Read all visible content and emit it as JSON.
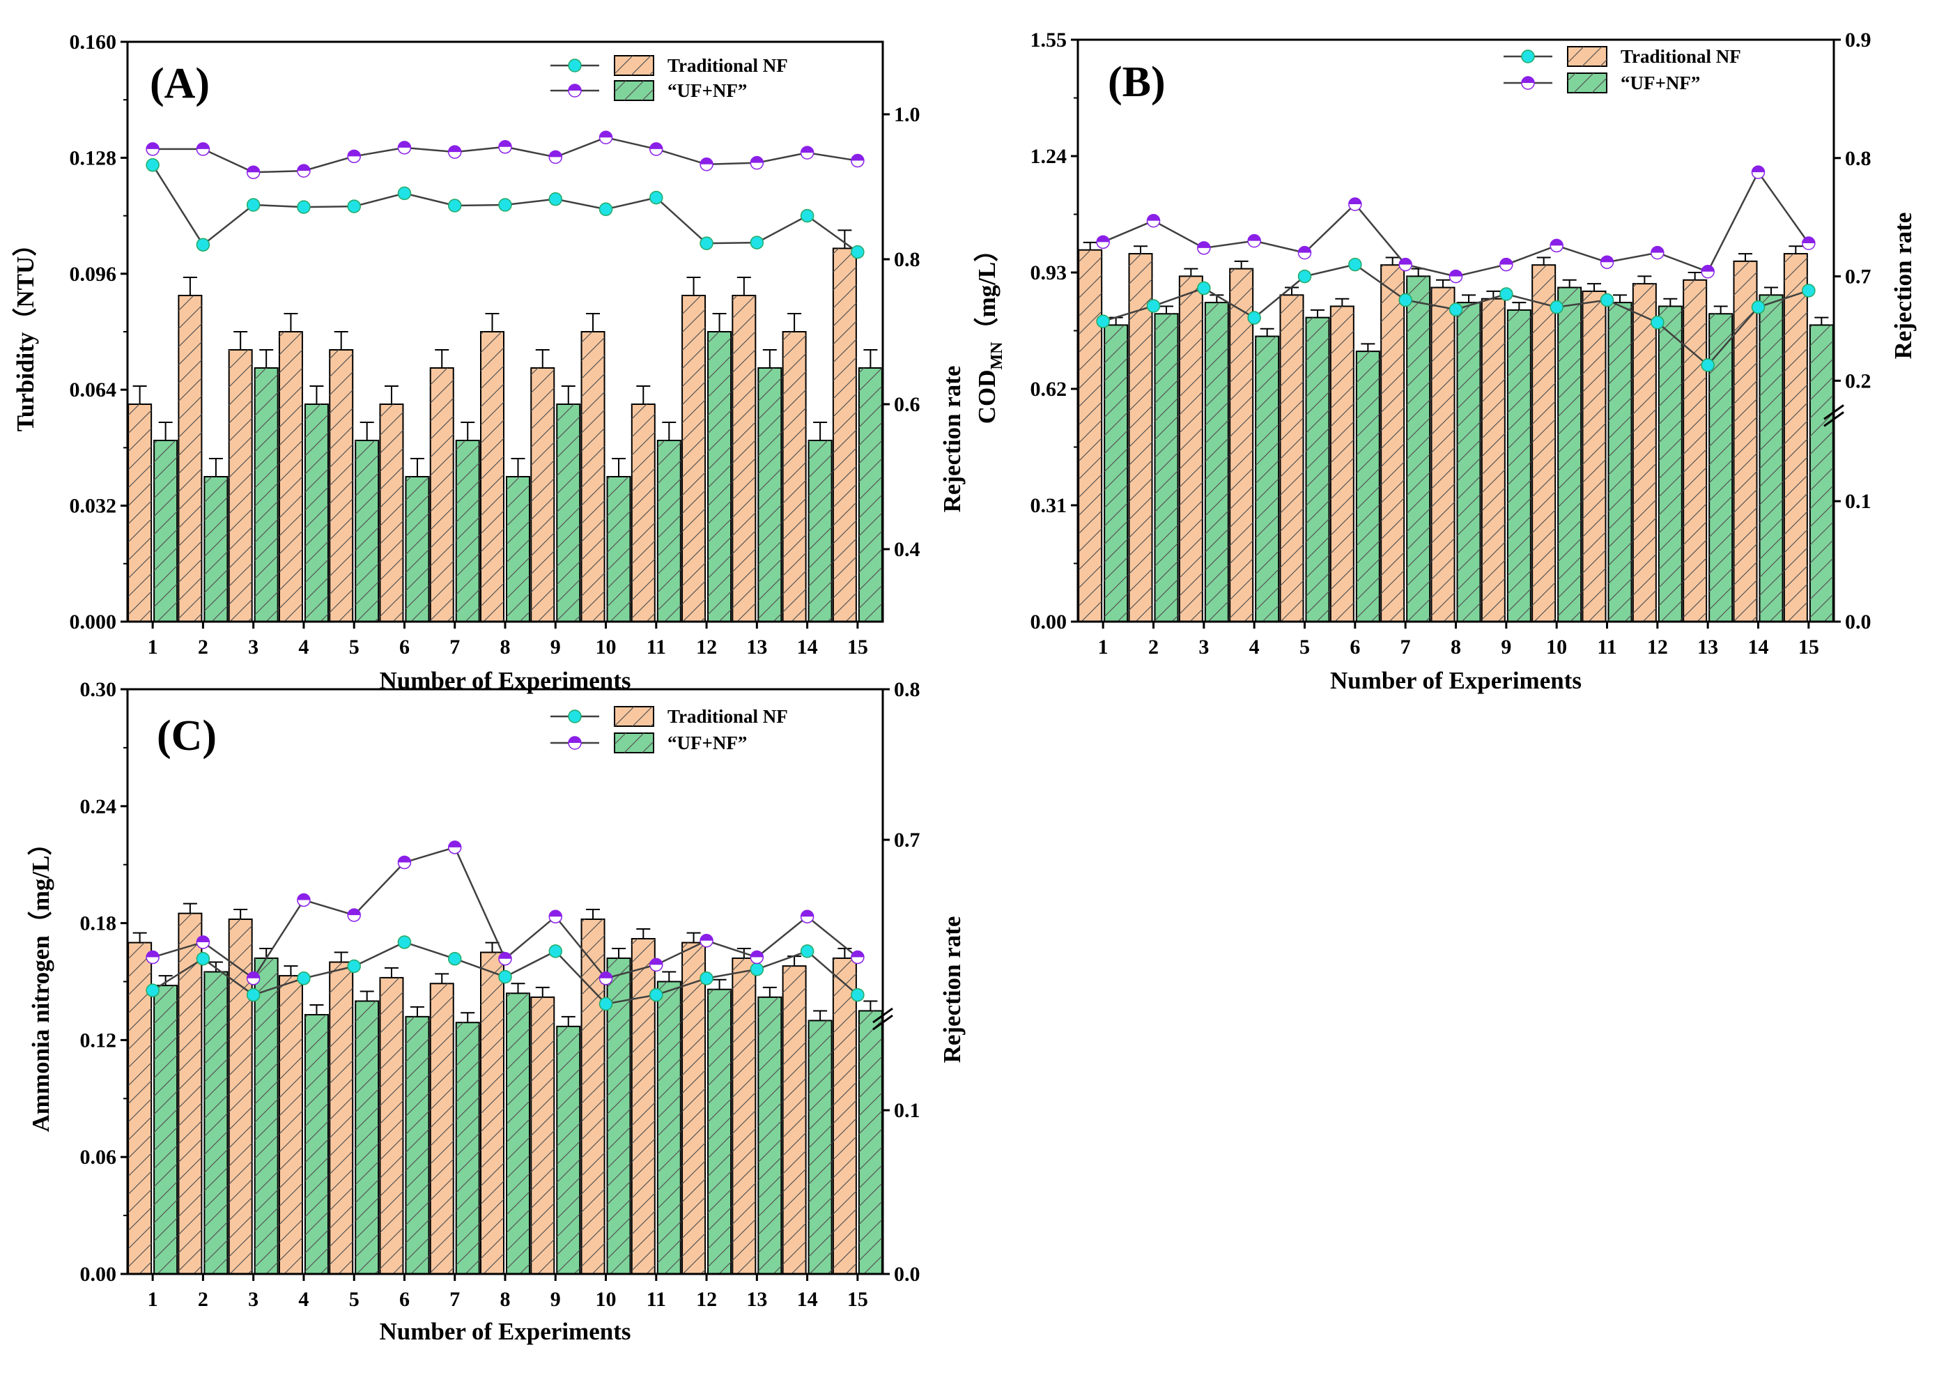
{
  "colors": {
    "traditional_bar": "#f9c79f",
    "ufnf_bar": "#7fd49b",
    "traditional_marker": "#1fe2e6",
    "ufnf_marker": "#8a1fe8",
    "line": "#404040"
  },
  "chart_data": [
    {
      "type": "bar",
      "panel_label": "(A)",
      "xlabel": "Number of Experiments",
      "ylabel": "Turbidity（NTU）",
      "ylabel_right": "Rejection rate",
      "categories": [
        "1",
        "2",
        "3",
        "4",
        "5",
        "6",
        "7",
        "8",
        "9",
        "10",
        "11",
        "12",
        "13",
        "14",
        "15"
      ],
      "ylim": [
        0,
        0.16
      ],
      "yticks": [
        "0.000",
        "0.032",
        "0.064",
        "0.096",
        "0.128",
        "0.160"
      ],
      "ylim_right": [
        0.3,
        1.1
      ],
      "yticks_right": [
        "0.4",
        "0.6",
        "0.8",
        "1.0"
      ],
      "legend": [
        "Traditional NF",
        "“UF+NF”"
      ],
      "series": [
        {
          "name": "Traditional NF",
          "kind": "bar",
          "values": [
            0.06,
            0.09,
            0.075,
            0.08,
            0.075,
            0.06,
            0.07,
            0.08,
            0.07,
            0.08,
            0.06,
            0.09,
            0.09,
            0.08,
            0.103
          ],
          "errors": [
            0.005,
            0.005,
            0.005,
            0.005,
            0.005,
            0.005,
            0.005,
            0.005,
            0.005,
            0.005,
            0.005,
            0.005,
            0.005,
            0.005,
            0.005
          ]
        },
        {
          "name": "“UF+NF”",
          "kind": "bar",
          "values": [
            0.05,
            0.04,
            0.07,
            0.06,
            0.05,
            0.04,
            0.05,
            0.04,
            0.06,
            0.04,
            0.05,
            0.08,
            0.07,
            0.05,
            0.07
          ],
          "errors": [
            0.005,
            0.005,
            0.005,
            0.005,
            0.005,
            0.005,
            0.005,
            0.005,
            0.005,
            0.005,
            0.005,
            0.005,
            0.005,
            0.005,
            0.005
          ]
        },
        {
          "name": "Traditional NF",
          "kind": "line",
          "values": [
            0.93,
            0.82,
            0.875,
            0.872,
            0.873,
            0.891,
            0.874,
            0.875,
            0.883,
            0.869,
            0.885,
            0.822,
            0.823,
            0.86,
            0.81
          ]
        },
        {
          "name": "“UF+NF”",
          "kind": "line",
          "values": [
            0.952,
            0.952,
            0.92,
            0.922,
            0.942,
            0.954,
            0.948,
            0.955,
            0.941,
            0.968,
            0.952,
            0.931,
            0.933,
            0.947,
            0.936
          ]
        }
      ]
    },
    {
      "type": "bar",
      "panel_label": "(B)",
      "xlabel": "Number of Experiments",
      "ylabel": "COD",
      "ylabel_sub": "MN",
      "ylabel_tail": "（mg/L）",
      "ylabel_right": "Rejection rate",
      "categories": [
        "1",
        "2",
        "3",
        "4",
        "5",
        "6",
        "7",
        "8",
        "9",
        "10",
        "11",
        "12",
        "13",
        "14",
        "15"
      ],
      "ylim": [
        0,
        1.55
      ],
      "yticks": [
        "0.00",
        "0.31",
        "0.62",
        "0.93",
        "1.24",
        "1.55"
      ],
      "ylim_right": [
        0,
        0.9
      ],
      "yticks_right": [
        "0.0",
        "0.1",
        "0.2",
        "0.7",
        "0.8",
        "0.9"
      ],
      "legend": [
        "Traditional NF",
        "“UF+NF”"
      ],
      "series": [
        {
          "name": "Traditional NF",
          "kind": "bar",
          "values": [
            0.99,
            0.98,
            0.92,
            0.94,
            0.87,
            0.84,
            0.95,
            0.89,
            0.86,
            0.95,
            0.88,
            0.9,
            0.91,
            0.96,
            0.98
          ],
          "errors": [
            0.02,
            0.02,
            0.02,
            0.02,
            0.02,
            0.02,
            0.02,
            0.02,
            0.02,
            0.02,
            0.02,
            0.02,
            0.02,
            0.02,
            0.02
          ]
        },
        {
          "name": "“UF+NF”",
          "kind": "bar",
          "values": [
            0.79,
            0.82,
            0.85,
            0.76,
            0.81,
            0.72,
            0.92,
            0.85,
            0.83,
            0.89,
            0.85,
            0.84,
            0.82,
            0.87,
            0.79
          ],
          "errors": [
            0.02,
            0.02,
            0.02,
            0.02,
            0.02,
            0.02,
            0.02,
            0.02,
            0.02,
            0.02,
            0.02,
            0.02,
            0.02,
            0.02,
            0.02
          ]
        },
        {
          "name": "Traditional NF",
          "kind": "line",
          "values": [
            0.662,
            0.675,
            0.69,
            0.665,
            0.7,
            0.71,
            0.68,
            0.672,
            0.685,
            0.674,
            0.68,
            0.661,
            0.625,
            0.674,
            0.688
          ]
        },
        {
          "name": "“UF+NF”",
          "kind": "line",
          "values": [
            0.729,
            0.747,
            0.724,
            0.73,
            0.72,
            0.761,
            0.71,
            0.7,
            0.71,
            0.726,
            0.712,
            0.72,
            0.704,
            0.788,
            0.728
          ]
        }
      ]
    },
    {
      "type": "bar",
      "panel_label": "(C)",
      "xlabel": "Number of Experiments",
      "ylabel": "Ammonia nitrogen（mg/L）",
      "ylabel_right": "Rejection rate",
      "categories": [
        "1",
        "2",
        "3",
        "4",
        "5",
        "6",
        "7",
        "8",
        "9",
        "10",
        "11",
        "12",
        "13",
        "14",
        "15"
      ],
      "ylim": [
        0,
        0.3
      ],
      "yticks": [
        "0.00",
        "0.06",
        "0.12",
        "0.18",
        "0.24",
        "0.30"
      ],
      "ylim_right": [
        0,
        0.8
      ],
      "yticks_right": [
        "0.0",
        "0.1",
        "0.7",
        "0.8"
      ],
      "legend": [
        "Traditional NF",
        "“UF+NF”"
      ],
      "series": [
        {
          "name": "Traditional NF",
          "kind": "bar",
          "values": [
            0.17,
            0.185,
            0.182,
            0.153,
            0.16,
            0.152,
            0.149,
            0.165,
            0.142,
            0.182,
            0.172,
            0.17,
            0.162,
            0.158,
            0.162
          ],
          "errors": [
            0.005,
            0.005,
            0.005,
            0.005,
            0.005,
            0.005,
            0.005,
            0.005,
            0.005,
            0.005,
            0.005,
            0.005,
            0.005,
            0.005,
            0.005
          ]
        },
        {
          "name": "“UF+NF”",
          "kind": "bar",
          "values": [
            0.148,
            0.155,
            0.162,
            0.133,
            0.14,
            0.132,
            0.129,
            0.144,
            0.127,
            0.162,
            0.15,
            0.146,
            0.142,
            0.13,
            0.135
          ],
          "errors": [
            0.005,
            0.005,
            0.005,
            0.005,
            0.005,
            0.005,
            0.005,
            0.005,
            0.005,
            0.005,
            0.005,
            0.005,
            0.005,
            0.005,
            0.005
          ]
        },
        {
          "name": "Traditional NF",
          "kind": "line",
          "values": [
            0.6,
            0.621,
            0.597,
            0.608,
            0.616,
            0.632,
            0.621,
            0.609,
            0.626,
            0.591,
            0.597,
            0.608,
            0.614,
            0.626,
            0.597
          ]
        },
        {
          "name": "“UF+NF”",
          "kind": "line",
          "values": [
            0.622,
            0.632,
            0.608,
            0.66,
            0.65,
            0.685,
            0.695,
            0.621,
            0.649,
            0.608,
            0.617,
            0.633,
            0.622,
            0.649,
            0.622
          ]
        }
      ]
    }
  ]
}
